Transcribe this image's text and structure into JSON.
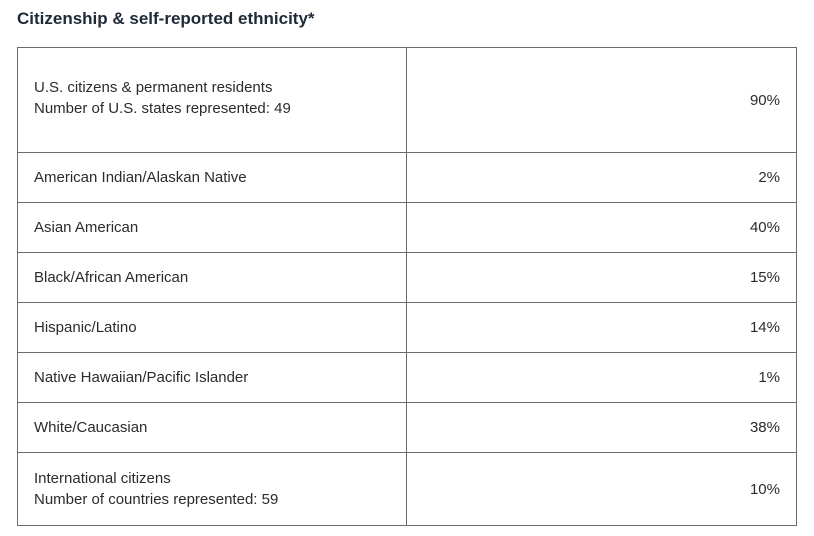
{
  "title": "Citizenship & self-reported ethnicity*",
  "table": {
    "rows": [
      {
        "label": [
          "U.S. citizens & permanent residents",
          "Number of U.S. states represented: 49"
        ],
        "value": "90%"
      },
      {
        "label": [
          "American Indian/Alaskan Native"
        ],
        "value": "2%"
      },
      {
        "label": [
          "Asian American"
        ],
        "value": "40%"
      },
      {
        "label": [
          "Black/African American"
        ],
        "value": "15%"
      },
      {
        "label": [
          "Hispanic/Latino"
        ],
        "value": "14%"
      },
      {
        "label": [
          "Native Hawaiian/Pacific Islander"
        ],
        "value": "1%"
      },
      {
        "label": [
          "White/Caucasian"
        ],
        "value": "38%"
      },
      {
        "label": [
          "International citizens",
          "Number of countries represented: 59"
        ],
        "value": "10%"
      }
    ]
  }
}
